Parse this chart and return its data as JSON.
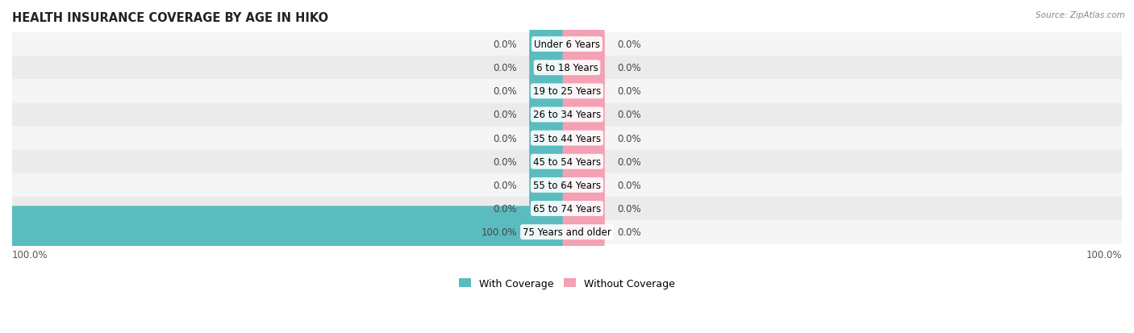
{
  "title": "HEALTH INSURANCE COVERAGE BY AGE IN HIKO",
  "source": "Source: ZipAtlas.com",
  "categories": [
    "Under 6 Years",
    "6 to 18 Years",
    "19 to 25 Years",
    "26 to 34 Years",
    "35 to 44 Years",
    "45 to 54 Years",
    "55 to 64 Years",
    "65 to 74 Years",
    "75 Years and older"
  ],
  "with_coverage": [
    0.0,
    0.0,
    0.0,
    0.0,
    0.0,
    0.0,
    0.0,
    0.0,
    100.0
  ],
  "without_coverage": [
    0.0,
    0.0,
    0.0,
    0.0,
    0.0,
    0.0,
    0.0,
    0.0,
    0.0
  ],
  "color_with": "#5bbcbf",
  "color_without": "#f4a0b5",
  "axis_min": -100,
  "axis_max": 100,
  "stub_size": 6,
  "bar_height": 0.62,
  "label_fontsize": 8.5,
  "title_fontsize": 10.5,
  "source_fontsize": 7.5,
  "legend_fontsize": 9,
  "background_color": "#ffffff",
  "row_bg_light": "#f5f5f5",
  "row_bg_dark": "#ebebeb"
}
